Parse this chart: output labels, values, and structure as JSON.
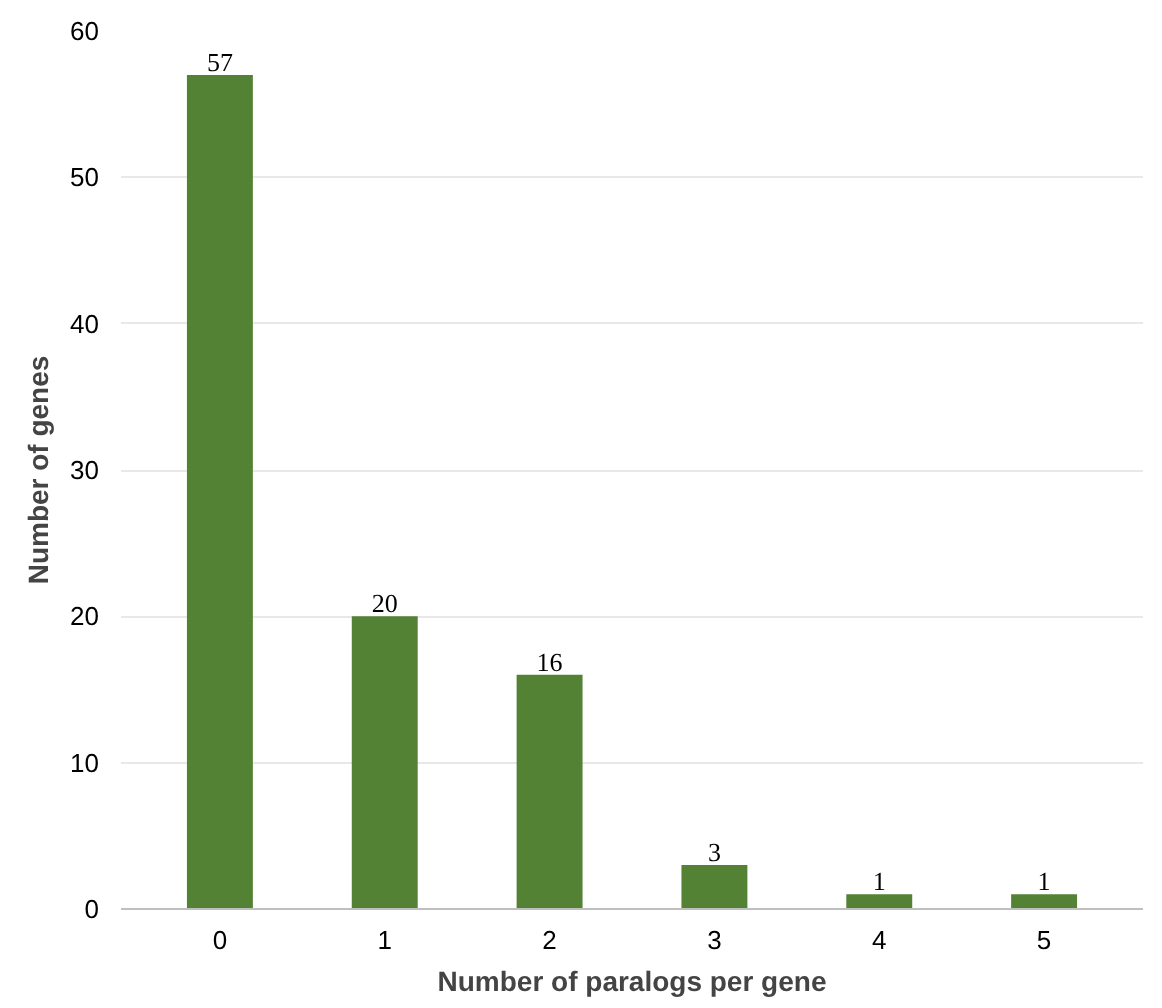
{
  "chart_data": {
    "type": "bar",
    "xlabel": "Number of paralogs per gene",
    "ylabel": "Number of genes",
    "categories": [
      "0",
      "1",
      "2",
      "3",
      "4",
      "5"
    ],
    "values": [
      57,
      20,
      16,
      3,
      1,
      1
    ],
    "color": "#548235",
    "ylim": [
      0,
      60
    ],
    "yticks": [
      0,
      10,
      20,
      30,
      40,
      50,
      60
    ],
    "grid": "y",
    "data_labels": true
  }
}
